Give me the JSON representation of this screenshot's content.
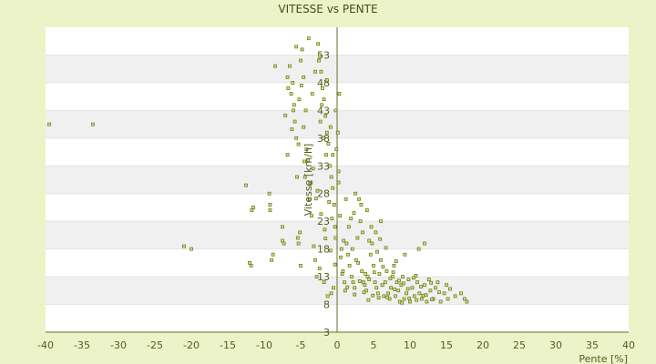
{
  "chart_data": {
    "type": "scatter",
    "title": "VITESSE vs PENTE",
    "xlabel": "Pente [%]",
    "ylabel": "Vitesse [km/h]",
    "xlim": [
      -40,
      40
    ],
    "ylim": [
      3,
      58
    ],
    "xticks": [
      -40,
      -35,
      -30,
      -25,
      -20,
      -15,
      -10,
      -5,
      0,
      5,
      10,
      15,
      20,
      25,
      30,
      35,
      40
    ],
    "yticks": [
      3,
      8,
      13,
      18,
      23,
      28,
      33,
      38,
      43,
      48,
      53
    ],
    "grid": "horizontal bands",
    "colors": {
      "marker": "#6b7d1a",
      "marker_fill": "#d8e690",
      "band_a": "#ffffff",
      "band_b": "#f0f0f0",
      "background": "#ecf3c8",
      "axis": "#6b6b2a"
    },
    "series": [
      {
        "points": [
          [
            -39.5,
            40.5
          ],
          [
            -33.5,
            40.5
          ],
          [
            -21,
            18.5
          ],
          [
            -20,
            18
          ],
          [
            -12.5,
            29.5
          ],
          [
            -11.5,
            25.5
          ],
          [
            -11.7,
            25
          ],
          [
            -12,
            15.5
          ],
          [
            -11.8,
            15
          ],
          [
            -9.3,
            28
          ],
          [
            -9.2,
            26
          ],
          [
            -9.2,
            25
          ],
          [
            -9,
            16
          ],
          [
            -8.8,
            17
          ],
          [
            -8.5,
            51
          ],
          [
            -7.5,
            22
          ],
          [
            -7.3,
            19
          ],
          [
            -7.5,
            19.5
          ],
          [
            -6.8,
            35
          ],
          [
            -6.5,
            51
          ],
          [
            -6.3,
            46
          ],
          [
            -6.1,
            48
          ],
          [
            -5.9,
            44
          ],
          [
            -5.8,
            41
          ],
          [
            -5.6,
            38
          ],
          [
            -5.5,
            31
          ],
          [
            -5.4,
            20
          ],
          [
            -5.3,
            19
          ],
          [
            -5,
            15
          ],
          [
            -5,
            52
          ],
          [
            -4.8,
            54
          ],
          [
            -4.6,
            49
          ],
          [
            -4.3,
            43
          ],
          [
            -4.2,
            36
          ],
          [
            -4,
            34
          ],
          [
            -3.8,
            27
          ],
          [
            -3.5,
            24
          ],
          [
            -3.2,
            18.5
          ],
          [
            -3,
            16
          ],
          [
            -2.8,
            13
          ],
          [
            -2.6,
            55
          ],
          [
            -2.4,
            53
          ],
          [
            -2.2,
            50
          ],
          [
            -2,
            47
          ],
          [
            -1.8,
            45
          ],
          [
            -1.6,
            42
          ],
          [
            -1.4,
            39
          ],
          [
            -1.2,
            37
          ],
          [
            -1,
            33
          ],
          [
            -0.8,
            31
          ],
          [
            -0.6,
            29
          ],
          [
            -0.4,
            26
          ],
          [
            -0.3,
            22
          ],
          [
            -0.2,
            20
          ],
          [
            -0.5,
            11
          ],
          [
            -0.8,
            10
          ],
          [
            -1.3,
            9.5
          ],
          [
            -1.8,
            12
          ],
          [
            -2.4,
            14.5
          ],
          [
            -3.6,
            30
          ],
          [
            -4.6,
            40
          ],
          [
            -5.2,
            45
          ],
          [
            -6,
            43
          ],
          [
            -6.7,
            47
          ],
          [
            -3,
            50
          ],
          [
            -2.1,
            44
          ],
          [
            -1.5,
            35
          ],
          [
            -0.9,
            40
          ],
          [
            -0.1,
            36
          ],
          [
            0.2,
            32
          ],
          [
            0.4,
            24
          ],
          [
            0.6,
            18
          ],
          [
            0.8,
            14
          ],
          [
            1,
            12
          ],
          [
            1.1,
            10.5
          ],
          [
            1.3,
            19
          ],
          [
            1.5,
            17
          ],
          [
            1.7,
            15
          ],
          [
            2,
            13
          ],
          [
            2.2,
            12
          ],
          [
            2.4,
            11
          ],
          [
            2.6,
            16
          ],
          [
            2.8,
            20
          ],
          [
            3,
            27
          ],
          [
            3.2,
            23
          ],
          [
            3.4,
            14
          ],
          [
            3.6,
            12
          ],
          [
            3.8,
            11.5
          ],
          [
            4,
            10.5
          ],
          [
            4.2,
            13
          ],
          [
            4.4,
            12.5
          ],
          [
            4.6,
            17
          ],
          [
            4.8,
            19
          ],
          [
            5,
            15
          ],
          [
            5.2,
            12
          ],
          [
            5.4,
            11
          ],
          [
            5.6,
            10
          ],
          [
            5.8,
            13.5
          ],
          [
            6,
            16
          ],
          [
            6.2,
            11.5
          ],
          [
            6.4,
            9.5
          ],
          [
            6.6,
            12
          ],
          [
            6.8,
            14
          ],
          [
            7,
            10
          ],
          [
            7.2,
            9
          ],
          [
            7.4,
            11
          ],
          [
            7.6,
            13
          ],
          [
            7.8,
            15
          ],
          [
            8,
            9.5
          ],
          [
            8.2,
            12
          ],
          [
            8.4,
            10.5
          ],
          [
            8.6,
            8.5
          ],
          [
            8.8,
            11.5
          ],
          [
            9,
            13
          ],
          [
            9.2,
            9
          ],
          [
            9.5,
            10
          ],
          [
            9.8,
            12.5
          ],
          [
            10,
            8.5
          ],
          [
            10.3,
            11
          ],
          [
            10.6,
            9.5
          ],
          [
            11,
            12
          ],
          [
            11.3,
            10
          ],
          [
            11.6,
            9
          ],
          [
            12,
            11.5
          ],
          [
            12.3,
            8.5
          ],
          [
            12.8,
            10.5
          ],
          [
            13.2,
            9
          ],
          [
            13.8,
            12
          ],
          [
            14.2,
            8.5
          ],
          [
            14.7,
            10
          ],
          [
            15.2,
            9
          ],
          [
            17,
            10
          ],
          [
            17.5,
            9
          ],
          [
            17.8,
            8.5
          ],
          [
            11.2,
            18
          ],
          [
            12,
            19
          ],
          [
            6,
            23
          ],
          [
            5.3,
            21
          ],
          [
            4.1,
            25
          ],
          [
            3.3,
            26
          ],
          [
            2.5,
            28
          ],
          [
            1.6,
            22
          ],
          [
            0.9,
            19.5
          ],
          [
            0.5,
            16.5
          ],
          [
            2.1,
            18
          ],
          [
            3.9,
            13.5
          ],
          [
            4.3,
            8.8
          ],
          [
            5.7,
            9.2
          ],
          [
            7.3,
            12.7
          ],
          [
            9.1,
            11.8
          ],
          [
            10.8,
            13.2
          ],
          [
            12.6,
            12.5
          ],
          [
            13.5,
            11
          ],
          [
            15,
            11.5
          ],
          [
            2.9,
            15.5
          ],
          [
            1.9,
            23.5
          ],
          [
            4.7,
            22
          ],
          [
            5.9,
            19.8
          ],
          [
            6.7,
            18.2
          ],
          [
            8.1,
            15.8
          ],
          [
            9.3,
            17
          ],
          [
            -1.1,
            26.5
          ],
          [
            -2.7,
            28.5
          ],
          [
            -3.3,
            32.5
          ],
          [
            -4.4,
            31
          ],
          [
            -5.1,
            21
          ],
          [
            -1.7,
            21.5
          ],
          [
            -0.7,
            23.5
          ],
          [
            0.1,
            39
          ],
          [
            -0.2,
            43
          ],
          [
            0.3,
            46
          ],
          [
            -1.4,
            48.5
          ],
          [
            -2.5,
            52
          ],
          [
            -3.9,
            56
          ],
          [
            -5.6,
            54.5
          ],
          [
            -6.8,
            49
          ],
          [
            -4.9,
            47.5
          ],
          [
            -3.4,
            46
          ],
          [
            -2.3,
            41
          ],
          [
            -1.9,
            38
          ],
          [
            -0.6,
            35
          ],
          [
            0.2,
            30
          ],
          [
            1.2,
            27
          ],
          [
            2.3,
            24.5
          ],
          [
            3.5,
            21
          ],
          [
            4.4,
            19.5
          ],
          [
            5.5,
            17.5
          ],
          [
            6.3,
            14.8
          ],
          [
            7.7,
            13.8
          ],
          [
            8.5,
            12.3
          ],
          [
            9.7,
            10.8
          ],
          [
            10.5,
            12.8
          ],
          [
            11.5,
            11.2
          ],
          [
            12.2,
            9.7
          ],
          [
            13,
            8.9
          ],
          [
            14,
            10.2
          ],
          [
            15.5,
            10.8
          ],
          [
            16.2,
            9.5
          ],
          [
            3.1,
            12.2
          ],
          [
            3.7,
            10.2
          ],
          [
            4.9,
            9.6
          ],
          [
            5.1,
            13.8
          ],
          [
            6.9,
            9.3
          ],
          [
            7.9,
            10.7
          ],
          [
            8.9,
            8.3
          ],
          [
            9.9,
            9.1
          ],
          [
            10.9,
            8.8
          ],
          [
            11.8,
            9.6
          ],
          [
            12.9,
            11.9
          ],
          [
            2.4,
            9.8
          ],
          [
            1.4,
            11.1
          ],
          [
            0.7,
            13.5
          ],
          [
            -0.3,
            15.2
          ],
          [
            -0.9,
            17.7
          ],
          [
            -1.6,
            19.9
          ],
          [
            -2.2,
            24.3
          ],
          [
            -2.9,
            27.1
          ],
          [
            -3.7,
            29.7
          ],
          [
            -4.5,
            33.8
          ],
          [
            -5.3,
            36.9
          ],
          [
            -6.2,
            39.6
          ],
          [
            -7.1,
            42.1
          ]
        ]
      }
    ]
  }
}
